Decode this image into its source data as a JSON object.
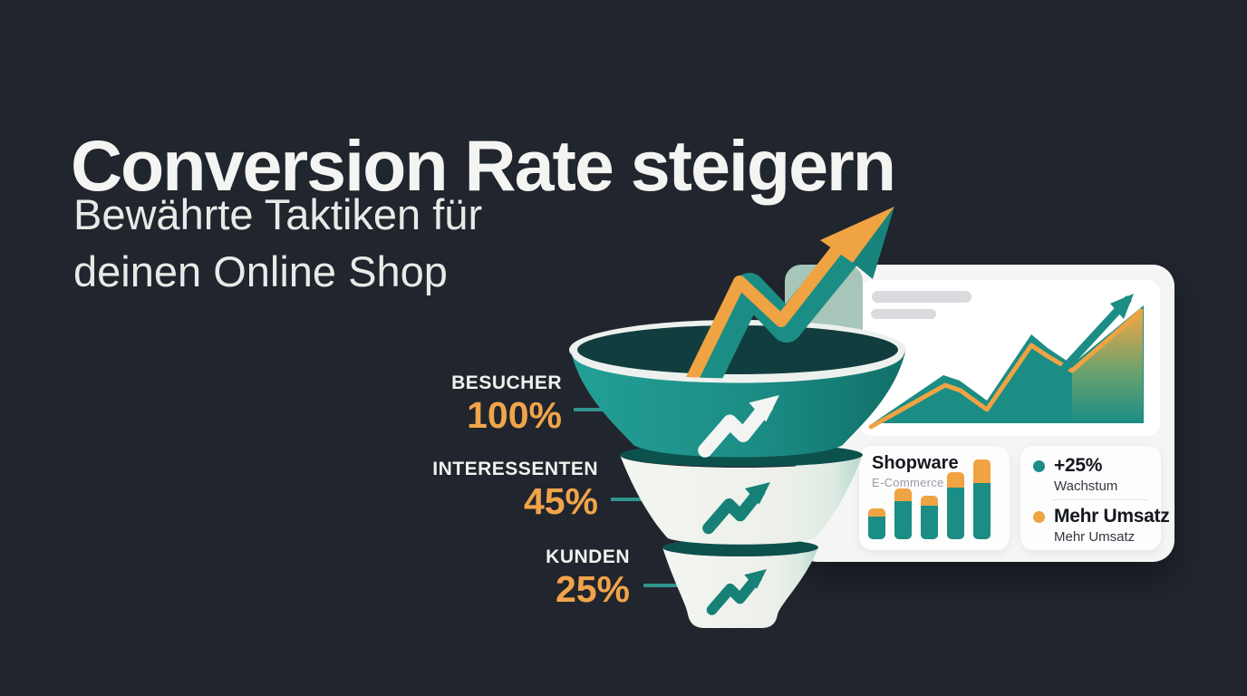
{
  "page": {
    "title": "Conversion Rate steigern",
    "subtitle_lines": [
      "Bewährte Taktiken für",
      "deinen Online Shop"
    ]
  },
  "funnel": {
    "stages": [
      {
        "label": "BESUCHER",
        "value": "100%"
      },
      {
        "label": "INTERESSENTEN",
        "value": "45%"
      },
      {
        "label": "KUNDEN",
        "value": "25%"
      }
    ]
  },
  "dashboard": {
    "shop_name": "Shopware",
    "shop_category": "E-Commerce",
    "legend": [
      {
        "title": "+25%",
        "subtitle": "Wachstum",
        "dot_color": "#1b8d85"
      },
      {
        "title": "Mehr Umsatz",
        "subtitle": "Mehr Umsatz",
        "dot_color": "#f0a342"
      }
    ]
  },
  "icons": {
    "trend_arrow": "zigzag-up-right-arrow",
    "growth_arrow": "large-two-tone-up-right-arrow",
    "skeleton_lines": "placeholder-text-bars"
  },
  "colors": {
    "background": "#21252d",
    "teal": "#1b8d85",
    "teal_dark_rim": "#0d514d",
    "orange": "#f0a342",
    "percent_orange": "#f1a44a",
    "card": "#f4f5f4",
    "panel": "#ffffff",
    "deco_card": "#a8c5b9",
    "headline": "#f4f5f2",
    "text_dark": "#14171c",
    "text_gray": "#979ba2"
  },
  "chart_data": [
    {
      "type": "funnel",
      "name": "conversion-funnel",
      "stages": [
        "Besucher",
        "Interessenten",
        "Kunden"
      ],
      "values": [
        100,
        45,
        25
      ],
      "unit": "%"
    },
    {
      "type": "area",
      "name": "dashboard-trend",
      "teal_area_points": [
        [
          15,
          158
        ],
        [
          93,
          105
        ],
        [
          111,
          111
        ],
        [
          141,
          133
        ],
        [
          190,
          60
        ],
        [
          208,
          75
        ],
        [
          235,
          93
        ],
        [
          314,
          28
        ],
        [
          314,
          158
        ]
      ],
      "gradient_area_points": [
        [
          235,
          98
        ],
        [
          313,
          33
        ],
        [
          313,
          158
        ],
        [
          235,
          158
        ]
      ],
      "orange_line_points": [
        [
          13,
          162
        ],
        [
          95,
          116
        ],
        [
          112,
          122
        ],
        [
          141,
          143
        ],
        [
          190,
          72
        ],
        [
          208,
          84
        ],
        [
          235,
          100
        ],
        [
          311,
          34
        ]
      ],
      "arrow": {
        "from": [
          213,
          112
        ],
        "to": [
          296,
          22
        ],
        "head_points": [
          [
            303,
            15
          ],
          [
            277,
            26
          ],
          [
            292,
            43
          ]
        ]
      },
      "colors": {
        "area": "#1b8d85",
        "line": "#f0a342"
      }
    },
    {
      "type": "bar",
      "name": "shopware-mini-bars",
      "values": [
        34,
        56,
        48,
        74,
        88
      ],
      "cap_values": [
        9,
        14,
        11,
        17,
        26
      ],
      "bar_color": "#1b8d85",
      "cap_color": "#f0a342"
    }
  ]
}
